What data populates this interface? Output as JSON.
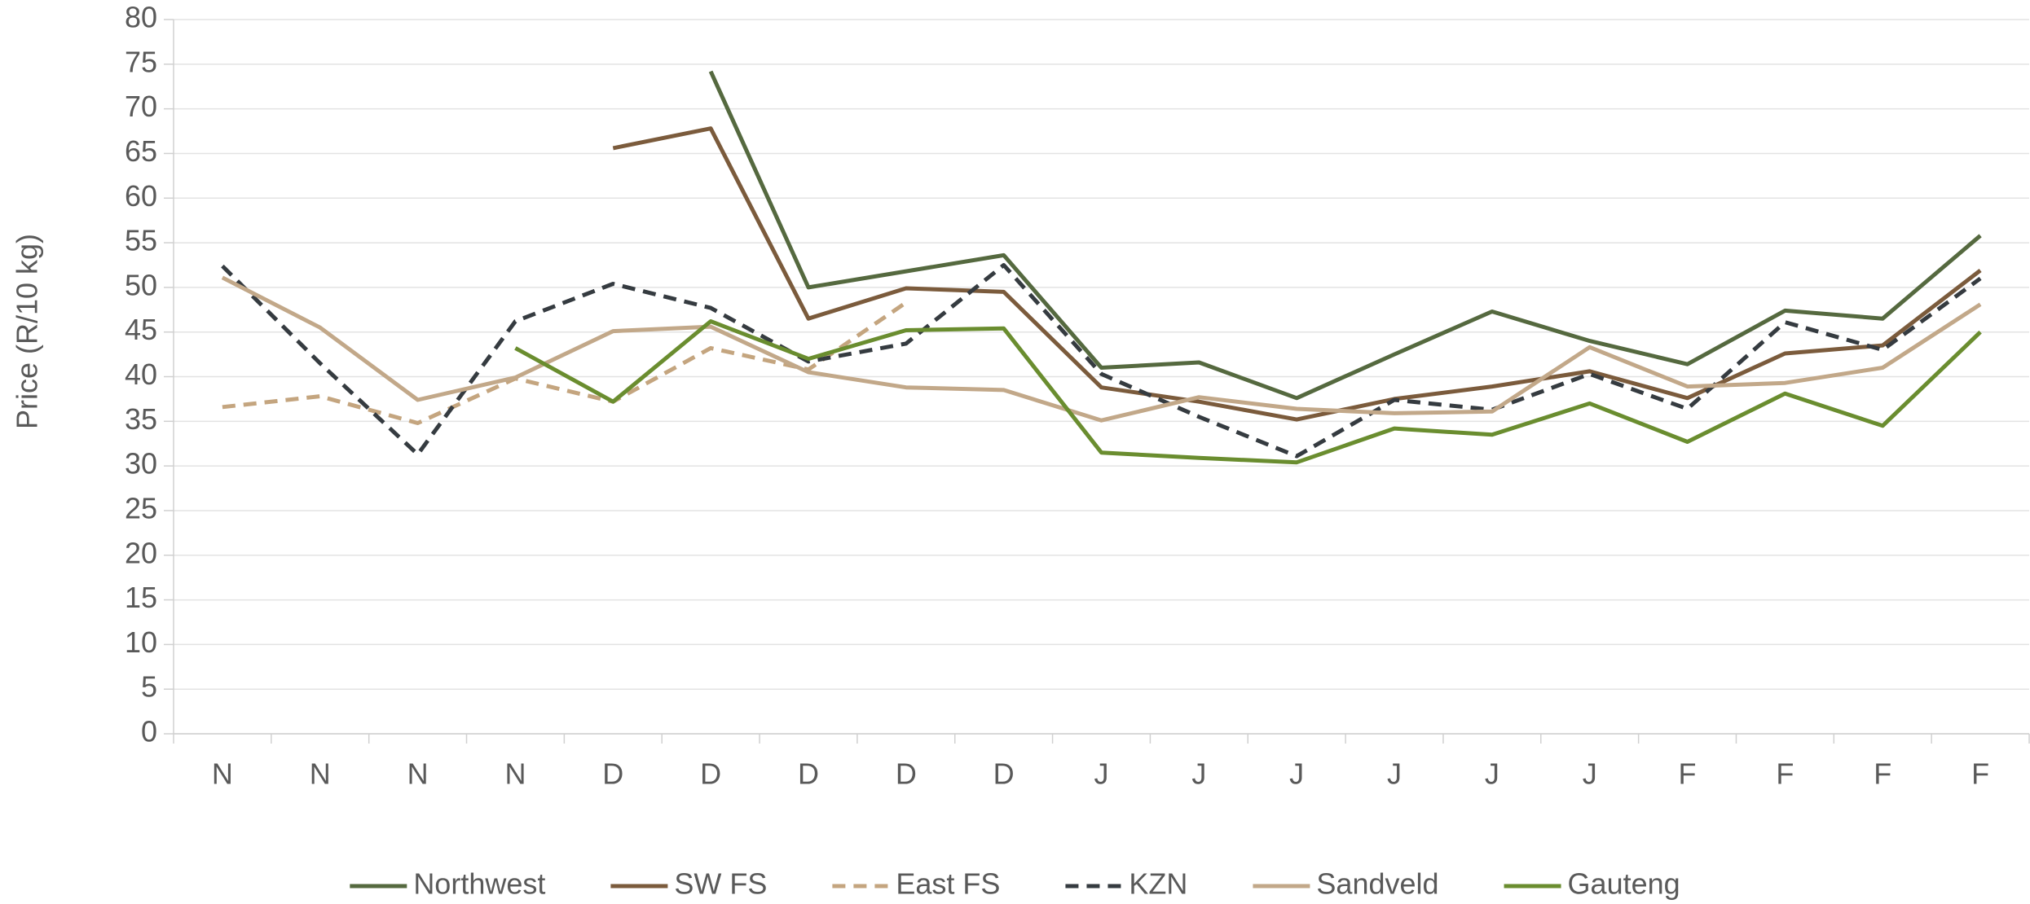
{
  "chart_data": {
    "type": "line",
    "y_label": "Price (R/10 kg)",
    "categories": [
      "N",
      "N",
      "N",
      "N",
      "D",
      "D",
      "D",
      "D",
      "D",
      "J",
      "J",
      "J",
      "J",
      "J",
      "J",
      "F",
      "F",
      "F",
      "F"
    ],
    "series": [
      {
        "name": "Northwest",
        "color": "#55693f",
        "dash": false,
        "values": [
          null,
          null,
          null,
          null,
          null,
          74.2,
          50,
          51.8,
          53.6,
          41,
          41.6,
          37.6,
          42.5,
          47.3,
          44,
          41.4,
          47.4,
          46.5,
          55.8
        ]
      },
      {
        "name": "SW FS",
        "color": "#7b5b3c",
        "dash": false,
        "values": [
          null,
          null,
          null,
          null,
          65.6,
          67.8,
          46.5,
          49.9,
          49.5,
          38.8,
          37.2,
          35.2,
          37.5,
          38.9,
          40.6,
          37.6,
          42.6,
          43.5,
          51.9
        ]
      },
      {
        "name": "East FS",
        "color": "#c4a57f",
        "dash": true,
        "values": [
          36.6,
          37.8,
          34.8,
          39.8,
          37.2,
          43.2,
          40.8,
          48.3,
          null,
          null,
          null,
          null,
          null,
          null,
          null,
          null,
          null,
          null,
          null
        ]
      },
      {
        "name": "KZN",
        "color": "#353b40",
        "dash": true,
        "values": [
          52.4,
          41.5,
          31.3,
          46.2,
          50.4,
          47.7,
          41.7,
          43.7,
          52.5,
          40.3,
          35.5,
          31.1,
          37.4,
          36.3,
          40.3,
          36.4,
          46.1,
          43,
          51
        ]
      },
      {
        "name": "Sandveld",
        "color": "#c2a889",
        "dash": false,
        "values": [
          51.1,
          45.5,
          37.4,
          39.9,
          45.1,
          45.6,
          40.5,
          38.8,
          38.5,
          35.1,
          37.7,
          36.4,
          35.9,
          36.1,
          43.3,
          38.9,
          39.3,
          41,
          48.1
        ]
      },
      {
        "name": "Gauteng",
        "color": "#6a8d2f",
        "dash": false,
        "values": [
          null,
          null,
          null,
          43.2,
          37.2,
          46.2,
          42,
          45.2,
          45.4,
          31.5,
          30.9,
          30.4,
          34.2,
          33.5,
          37,
          32.7,
          38.1,
          34.5,
          45
        ]
      }
    ],
    "ylim": [
      0,
      80
    ],
    "yticks": [
      0,
      5,
      10,
      15,
      20,
      25,
      30,
      35,
      40,
      45,
      50,
      55,
      60,
      65,
      70,
      75,
      80
    ],
    "grid": true,
    "legend": "bottom"
  }
}
